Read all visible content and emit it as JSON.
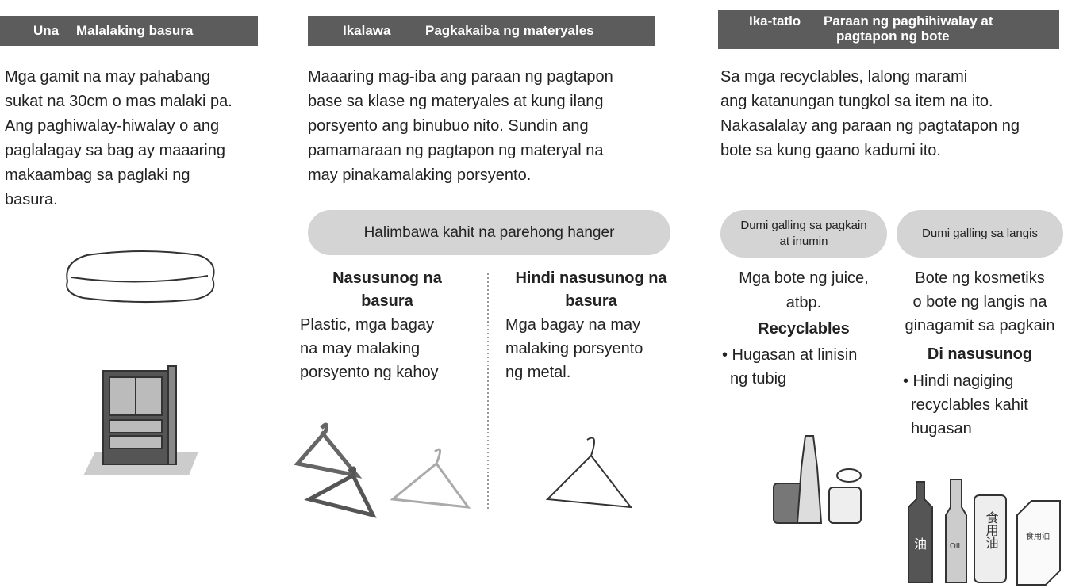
{
  "sections": [
    {
      "number": "Una",
      "title": [
        "Malalaking basura"
      ],
      "body": [
        "Mga gamit na may pahabang",
        "sukat na 30cm o mas malaki pa.",
        "Ang paghiwalay-hiwalay o ang",
        "paglalagay sa bag ay maaaring",
        "makaambag sa paglaki ng",
        "basura."
      ]
    },
    {
      "number": "Ikalawa",
      "title": [
        "Pagkakaiba ng materyales"
      ],
      "body": [
        "Maaaring mag-iba ang paraan ng pagtapon",
        "base sa klase ng materyales at kung ilang",
        "porsyento ang binubuo nito.  Sundin ang",
        "pamamaraan ng pagtapon ng materyal na",
        "may pinakamalaking porsyento."
      ],
      "example": "Halimbawa kahit na parehong hanger",
      "groups": [
        {
          "heading": [
            "Nasusunog na",
            "basura"
          ],
          "body": [
            "Plastic, mga bagay",
            "na may malaking",
            "porsyento ng kahoy"
          ]
        },
        {
          "heading": [
            "Hindi nasusunog na",
            "basura"
          ],
          "body": [
            "Mga bagay na may",
            "malaking porsyento",
            "ng metal."
          ]
        }
      ]
    },
    {
      "number": "Ika-tatlo",
      "title": [
        "Paraan ng paghihiwalay at",
        "pagtapon ng bote"
      ],
      "body": [
        "Sa mga recyclables, lalong marami",
        "ang katanungan tungkol sa item na ito.",
        "Nakasalalay ang paraan ng pagtatapon ng",
        "bote sa kung gaano kadumi ito."
      ],
      "groups": [
        {
          "category": [
            "Dumi galling sa pagkain",
            "at inumin"
          ],
          "items": [
            "Mga bote ng juice,",
            "atbp."
          ],
          "result": "Recyclables",
          "note": [
            "• Hugasan at linisin",
            "ng tubig"
          ]
        },
        {
          "category": [
            "Dumi galling sa langis"
          ],
          "items": [
            "Bote ng kosmetiks",
            "o bote ng langis na",
            "ginagamit sa pagkain"
          ],
          "result": "Di nasusunog",
          "note": [
            "• Hindi nagiging",
            "recyclables kahit",
            "hugasan"
          ]
        }
      ]
    }
  ],
  "illustration_labels": [
    "油",
    "OIL",
    "食用油"
  ]
}
